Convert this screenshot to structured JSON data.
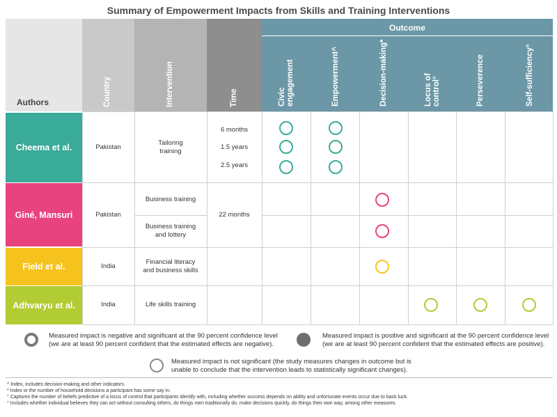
{
  "title": "Summary of Empowerment Impacts from Skills and Training Interventions",
  "headers": {
    "authors": "Authors",
    "country": "Country",
    "intervention": "Intervention",
    "time": "Time",
    "outcome": "Outcome",
    "outcomes": [
      "Civic",
      "engagement",
      "Empowerment^",
      "Decision-making*",
      "Locus of",
      "control°",
      "Perseverence",
      "Self-sufficiency°"
    ]
  },
  "rows": [
    {
      "author": "Cheema et al.",
      "country": "Pakistan",
      "intervention": [
        "Tailoring",
        "training"
      ],
      "times": [
        "6 months",
        "1.5 years",
        "2.5 years"
      ]
    },
    {
      "author": "Giné, Mansuri",
      "country": "Pakistan",
      "interventions": [
        "Business training",
        "Business training",
        "and lottery"
      ],
      "time": "22 months"
    },
    {
      "author": "Field et al.",
      "country": "India",
      "intervention": [
        "Financial literacy",
        "and business skills"
      ]
    },
    {
      "author": "Adhvaryu et al.",
      "country": "India",
      "intervention": [
        "Life skills training"
      ]
    }
  ],
  "impacts": [
    {
      "row": "Cheema et al.",
      "outcome": "Civic engagement",
      "time": "6 months",
      "result": "not significant"
    },
    {
      "row": "Cheema et al.",
      "outcome": "Civic engagement",
      "time": "1.5 years",
      "result": "not significant"
    },
    {
      "row": "Cheema et al.",
      "outcome": "Civic engagement",
      "time": "2.5 years",
      "result": "not significant"
    },
    {
      "row": "Cheema et al.",
      "outcome": "Empowerment",
      "time": "6 months",
      "result": "not significant"
    },
    {
      "row": "Cheema et al.",
      "outcome": "Empowerment",
      "time": "1.5 years",
      "result": "not significant"
    },
    {
      "row": "Cheema et al.",
      "outcome": "Empowerment",
      "time": "2.5 years",
      "result": "not significant"
    },
    {
      "row": "Giné, Mansuri",
      "outcome": "Decision-making",
      "intervention": "Business training",
      "result": "not significant"
    },
    {
      "row": "Giné, Mansuri",
      "outcome": "Decision-making",
      "intervention": "Business training and lottery",
      "result": "not significant"
    },
    {
      "row": "Field et al.",
      "outcome": "Decision-making",
      "result": "not significant"
    },
    {
      "row": "Adhvaryu et al.",
      "outcome": "Locus of control",
      "result": "not significant"
    },
    {
      "row": "Adhvaryu et al.",
      "outcome": "Perseverence",
      "result": "not significant"
    },
    {
      "row": "Adhvaryu et al.",
      "outcome": "Self-sufficiency",
      "result": "not significant"
    }
  ],
  "colors": {
    "cheema": "#3aaa99",
    "gine": "#e8427f",
    "field": "#f6c31e",
    "adhvaryu": "#b2cc34",
    "outcome_header": "#6b97a6",
    "authors_header": "#e6e6e6",
    "country_header": "#c9c9c9",
    "intervention_header": "#b4b4b4",
    "time_header": "#8e8e8e"
  },
  "legend": {
    "negative": [
      "Measured impact is negative and significant at the 90 percent confidence level",
      "(we are at least 90 percent confident that the estimated effects are negative)."
    ],
    "positive": [
      "Measured impact is positive and significant at the 90 percent confidence level",
      "(we are at least 90 percent confident that the estimated effects are positive)."
    ],
    "not_significant": [
      "Measured impact is not significant (the study measures changes in outcome but is",
      "unable to conclude that the intervention leads to statistically significant changes)."
    ]
  },
  "footnotes": [
    "^ Index, includes decision-making and other indicators.",
    "* Index or the number of household decisions a participant has some say in.",
    "° Captures the number of beliefs predictive of a locus of control that participants identify with, including whether success depends on ability and unfortunate events occur due to back luck.",
    "° Includes whether individual believes they can act without consulting others, do things men traditionally do, make decisions quickly, do things their own way, among other measures."
  ]
}
